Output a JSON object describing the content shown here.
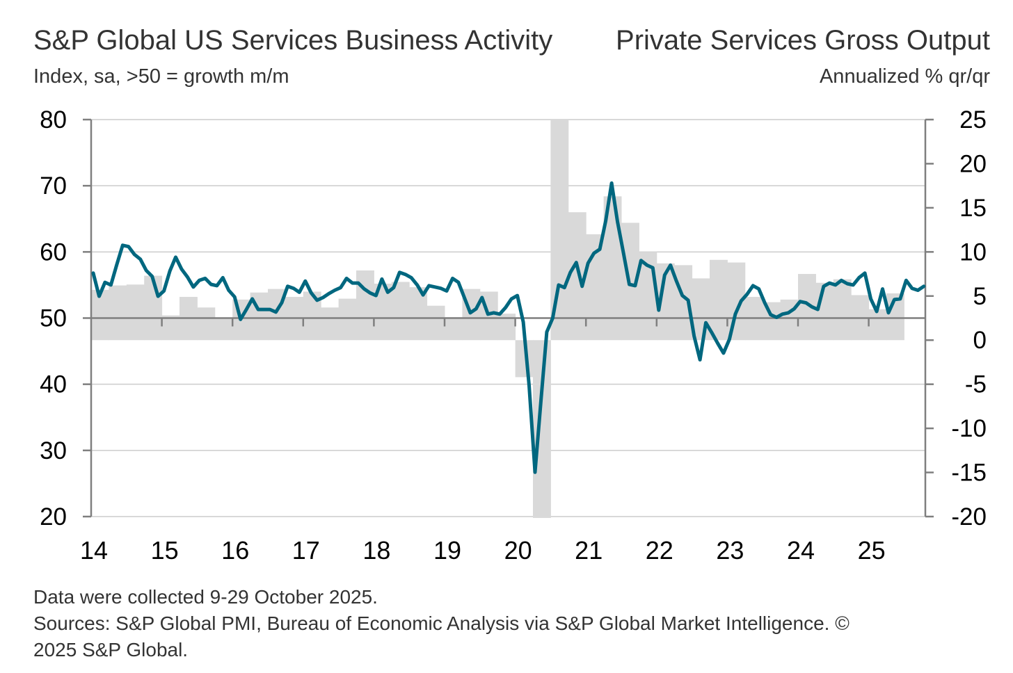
{
  "chart_data": {
    "type": "line+bar",
    "title_left": "S&P Global US Services Business Activity",
    "subtitle_left": "Index, sa, >50 = growth m/m",
    "title_right": "Private Services Gross Output",
    "subtitle_right": "Annualized % qr/qr",
    "left_axis": {
      "ylim": [
        20,
        80
      ],
      "ticks": [
        "80",
        "70",
        "60",
        "50",
        "40",
        "30",
        "20"
      ]
    },
    "right_axis": {
      "ylim": [
        -20,
        25
      ],
      "ticks": [
        "25",
        "20",
        "15",
        "10",
        "5",
        "0",
        "-5",
        "-10",
        "-15",
        "-20"
      ]
    },
    "x_tick_labels": [
      "14",
      "15",
      "16",
      "17",
      "18",
      "19",
      "20",
      "21",
      "22",
      "23",
      "24",
      "25"
    ],
    "x_start": "2014-01",
    "grid": true,
    "reference_line": 50,
    "colors": {
      "line": "#00677f",
      "bars": "#d9d9d9",
      "grid": "#cccccc",
      "axis": "#7f7f7f"
    },
    "series": [
      {
        "name": "S&P Global US Services Business Activity Index",
        "axis": "left",
        "frequency": "monthly",
        "values": [
          56.8,
          53.3,
          55.4,
          55.0,
          58.1,
          61.0,
          60.8,
          59.6,
          58.9,
          57.2,
          56.3,
          53.3,
          54.1,
          57.1,
          59.2,
          57.4,
          56.2,
          54.7,
          55.7,
          56.0,
          55.1,
          54.9,
          56.1,
          54.2,
          53.2,
          49.8,
          51.3,
          52.9,
          51.3,
          51.3,
          51.3,
          50.9,
          52.3,
          54.8,
          54.5,
          53.9,
          55.6,
          53.8,
          52.7,
          53.1,
          53.7,
          54.2,
          54.6,
          56.0,
          55.3,
          55.3,
          54.4,
          53.8,
          53.4,
          55.9,
          53.9,
          54.6,
          56.9,
          56.6,
          56.1,
          55.0,
          53.5,
          54.9,
          54.7,
          54.5,
          54.1,
          56.0,
          55.4,
          53.1,
          50.8,
          51.4,
          53.1,
          50.6,
          50.8,
          50.6,
          51.6,
          52.9,
          53.4,
          49.4,
          39.8,
          26.7,
          37.5,
          47.9,
          50.0,
          55.0,
          54.6,
          56.9,
          58.4,
          54.8,
          58.3,
          59.8,
          60.4,
          64.7,
          70.4,
          64.6,
          59.9,
          55.1,
          54.9,
          58.7,
          58.0,
          57.6,
          51.2,
          56.5,
          58.0,
          55.6,
          53.4,
          52.7,
          47.3,
          43.7,
          49.3,
          47.8,
          46.2,
          44.7,
          46.8,
          50.6,
          52.6,
          53.6,
          54.9,
          54.4,
          52.3,
          50.5,
          50.1,
          50.6,
          50.8,
          51.4,
          52.5,
          52.3,
          51.7,
          51.3,
          54.8,
          55.3,
          55.0,
          55.7,
          55.2,
          55.0,
          56.1,
          56.8,
          52.9,
          51.0,
          54.4,
          50.8,
          52.8,
          52.9,
          55.7,
          54.5,
          54.2,
          54.8
        ]
      },
      {
        "name": "Private Services Gross Output (annualized % q/q)",
        "axis": "right",
        "frequency": "quarterly",
        "values": [
          5.7,
          6.2,
          6.3,
          7.3,
          2.8,
          4.9,
          3.7,
          2.5,
          4.6,
          5.4,
          5.8,
          4.9,
          5.5,
          3.7,
          4.7,
          7.9,
          6.4,
          6.6,
          6.0,
          3.9,
          2.6,
          5.8,
          5.5,
          3.0,
          -4.2,
          -32.0,
          35.0,
          14.5,
          12.0,
          16.3,
          13.3,
          10.0,
          8.7,
          8.5,
          7.0,
          9.1,
          8.8,
          4.9,
          4.3,
          4.6,
          7.5,
          6.5,
          6.9,
          5.1,
          3.5,
          5.3
        ]
      }
    ]
  },
  "footer": {
    "line1": "Data were collected 9-29 October 2025.",
    "line2": "Sources: S&P Global PMI, Bureau of Economic Analysis via S&P Global Market Intelligence. ©",
    "line3": "2025 S&P Global."
  }
}
